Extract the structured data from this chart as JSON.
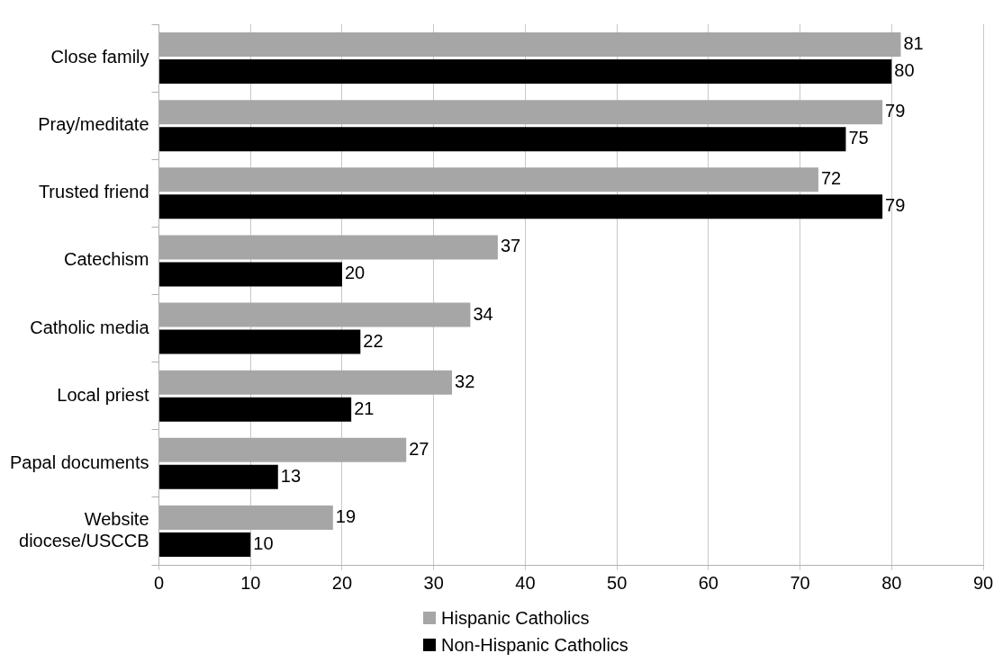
{
  "chart_data": {
    "type": "bar",
    "orientation": "horizontal",
    "categories": [
      "Close family",
      "Pray/meditate",
      "Trusted friend",
      "Catechism",
      "Catholic media",
      "Local priest",
      "Papal documents",
      "Website diocese/USCCB"
    ],
    "series": [
      {
        "name": "Hispanic Catholics",
        "color": "#a6a6a6",
        "values": [
          81,
          79,
          72,
          37,
          34,
          32,
          27,
          19
        ]
      },
      {
        "name": "Non-Hispanic Catholics",
        "color": "#000000",
        "values": [
          80,
          75,
          79,
          20,
          22,
          21,
          13,
          10
        ]
      }
    ],
    "xlim": [
      0,
      90
    ],
    "xticks": [
      0,
      10,
      20,
      30,
      40,
      50,
      60,
      70,
      80,
      90
    ],
    "grid": "x",
    "legend": "bottom",
    "data_labels": true
  }
}
